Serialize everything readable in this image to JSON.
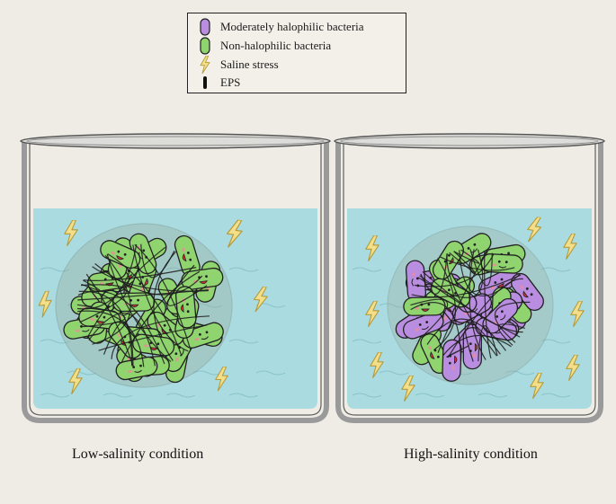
{
  "legend": {
    "items": [
      {
        "label": "Moderately halophilic bacteria",
        "icon": "purple-bacterium-icon",
        "color": "#b98ee0"
      },
      {
        "label": "Non-halophilic bacteria",
        "icon": "green-bacterium-icon",
        "color": "#8fd46f"
      },
      {
        "label": "Saline stress",
        "icon": "lightning-bolt-icon",
        "color": "#f3df8a"
      },
      {
        "label": "EPS",
        "icon": "eps-strand-icon",
        "color": "#111111"
      }
    ]
  },
  "beakers": [
    {
      "caption": "Low-salinity condition",
      "composition": "green"
    },
    {
      "caption": "High-salinity condition",
      "composition": "mixed"
    }
  ],
  "colors": {
    "water": "#a9dbe0",
    "green_bacterium": "#8fd46f",
    "purple_bacterium": "#b98ee0",
    "bolt": "#f3df8a",
    "glass": "#9a9a9a"
  }
}
